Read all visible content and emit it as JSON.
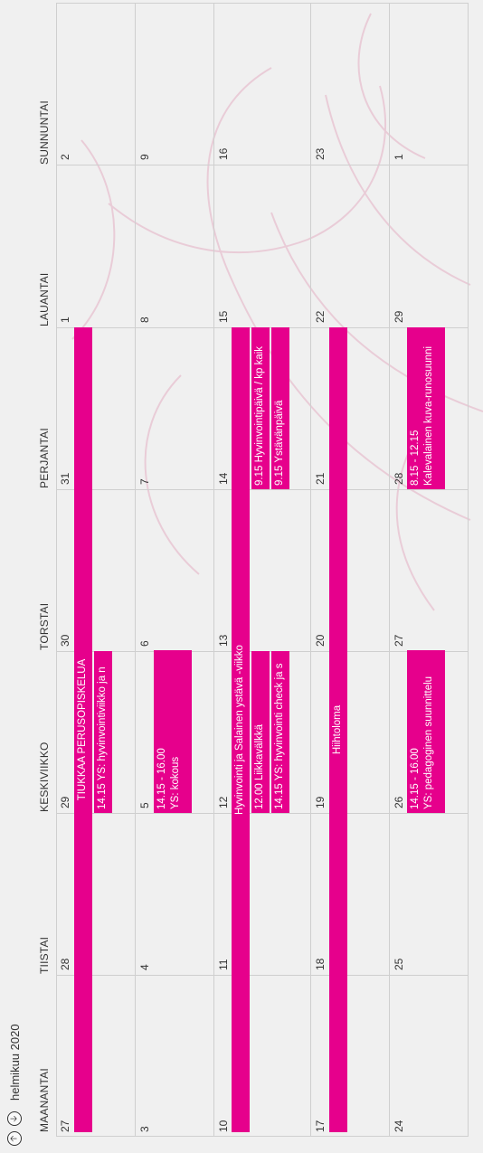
{
  "header": {
    "month_label": "helmikuu 2020",
    "prev_label": "🡡",
    "next_label": "🡣"
  },
  "weekdays": [
    "MAANANTAI",
    "TIISTAI",
    "KESKIVIIKKO",
    "TORSTAI",
    "PERJANTAI",
    "LAUANTAI",
    "SUNNUNTAI"
  ],
  "weeks": [
    [
      "27",
      "28",
      "29",
      "30",
      "31",
      "1",
      "2"
    ],
    [
      "3",
      "4",
      "5",
      "6",
      "7",
      "8",
      "9"
    ],
    [
      "10",
      "11",
      "12",
      "13",
      "14",
      "15",
      "16"
    ],
    [
      "17",
      "18",
      "19",
      "20",
      "21",
      "22",
      "23"
    ],
    [
      "24",
      "25",
      "26",
      "27",
      "28",
      "29",
      "1"
    ]
  ],
  "events": {
    "tiukkaa": "TIUKKAA PERUSOPISKELUA",
    "ys_hyvinvointi_1": "14.15 YS: hyvinvointiviikko ja n",
    "kokous_time": "14.15 - 16.00",
    "kokous_title": "YS: kokous",
    "hyvinvointi_viikko": "Hyvinvointi ja Salainen ystävä -viikko",
    "liikkavalkka": "12.00 Liikkavälkkä",
    "ys_check": "14.15 YS: hyvinvointi check ja s",
    "hyvinvointipaiva": "9.15 Hyvinvointipäivä / kp kaik",
    "ystavanpaiva": "9.15 Ystävänpäivä",
    "hiihtoloma": "Hiihtoloma",
    "pedagoginen_time": "14.15 - 16.00",
    "pedagoginen_title": "YS: pedagoginen suunnittelu",
    "kalevalainen_time": "8.15 - 12.15",
    "kalevalainen_title": "Kalevalainen kuva-runosuunni"
  },
  "colors": {
    "event": "#e6008c",
    "background": "#f0f0f0",
    "grid_line": "#cfcfcf"
  }
}
